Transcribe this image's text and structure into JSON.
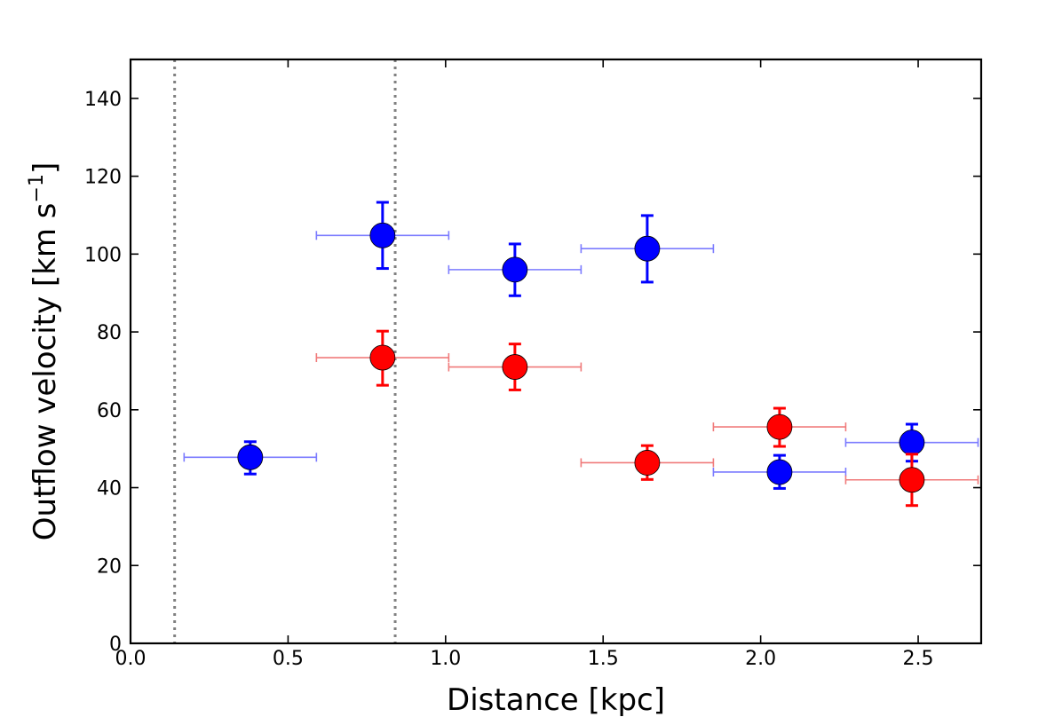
{
  "chart_data": {
    "type": "scatter",
    "title": "",
    "xlabel": "Distance [kpc]",
    "ylabel": "Outflow velocity [km s",
    "ylabel_sup": "−1",
    "ylabel_close": "]",
    "xlim": [
      0.0,
      2.7
    ],
    "ylim": [
      0,
      150
    ],
    "xticks": [
      {
        "value": 0.0,
        "label": "0.0"
      },
      {
        "value": 0.5,
        "label": "0.5"
      },
      {
        "value": 1.0,
        "label": "1.0"
      },
      {
        "value": 1.5,
        "label": "1.5"
      },
      {
        "value": 2.0,
        "label": "2.0"
      },
      {
        "value": 2.5,
        "label": "2.5"
      }
    ],
    "yticks": [
      {
        "value": 0,
        "label": "0"
      },
      {
        "value": 20,
        "label": "20"
      },
      {
        "value": 40,
        "label": "40"
      },
      {
        "value": 60,
        "label": "60"
      },
      {
        "value": 80,
        "label": "80"
      },
      {
        "value": 100,
        "label": "100"
      },
      {
        "value": 120,
        "label": "120"
      },
      {
        "value": 140,
        "label": "140"
      }
    ],
    "vlines": [
      0.14,
      0.84
    ],
    "vline_color": "#808080",
    "series": [
      {
        "name": "blue",
        "color": "#0000ff",
        "errbar_x_color": "#7b7bff",
        "points": [
          {
            "x": 0.38,
            "y": 47.8,
            "xlo": 0.17,
            "xhi": 0.59,
            "ylo": 43.5,
            "yhi": 51.8
          },
          {
            "x": 0.8,
            "y": 104.8,
            "xlo": 0.59,
            "xhi": 1.01,
            "ylo": 96.3,
            "yhi": 113.3
          },
          {
            "x": 1.22,
            "y": 96.0,
            "xlo": 1.01,
            "xhi": 1.43,
            "ylo": 89.3,
            "yhi": 102.6
          },
          {
            "x": 1.64,
            "y": 101.4,
            "xlo": 1.43,
            "xhi": 1.85,
            "ylo": 92.8,
            "yhi": 109.9
          },
          {
            "x": 2.06,
            "y": 44.0,
            "xlo": 1.85,
            "xhi": 2.27,
            "ylo": 39.8,
            "yhi": 48.3
          },
          {
            "x": 2.48,
            "y": 51.6,
            "xlo": 2.27,
            "xhi": 2.69,
            "ylo": 46.8,
            "yhi": 56.3
          }
        ]
      },
      {
        "name": "red",
        "color": "#ff0000",
        "errbar_x_color": "#f07a7a",
        "points": [
          {
            "x": 0.8,
            "y": 73.4,
            "xlo": 0.59,
            "xhi": 1.01,
            "ylo": 66.3,
            "yhi": 80.2
          },
          {
            "x": 1.22,
            "y": 71.0,
            "xlo": 1.01,
            "xhi": 1.43,
            "ylo": 65.1,
            "yhi": 76.9
          },
          {
            "x": 1.64,
            "y": 46.4,
            "xlo": 1.43,
            "xhi": 1.85,
            "ylo": 42.1,
            "yhi": 50.8
          },
          {
            "x": 2.06,
            "y": 55.6,
            "xlo": 1.85,
            "xhi": 2.27,
            "ylo": 50.6,
            "yhi": 60.4
          },
          {
            "x": 2.48,
            "y": 42.0,
            "xlo": 2.27,
            "xhi": 2.69,
            "ylo": 35.4,
            "yhi": 48.6
          }
        ]
      }
    ]
  }
}
